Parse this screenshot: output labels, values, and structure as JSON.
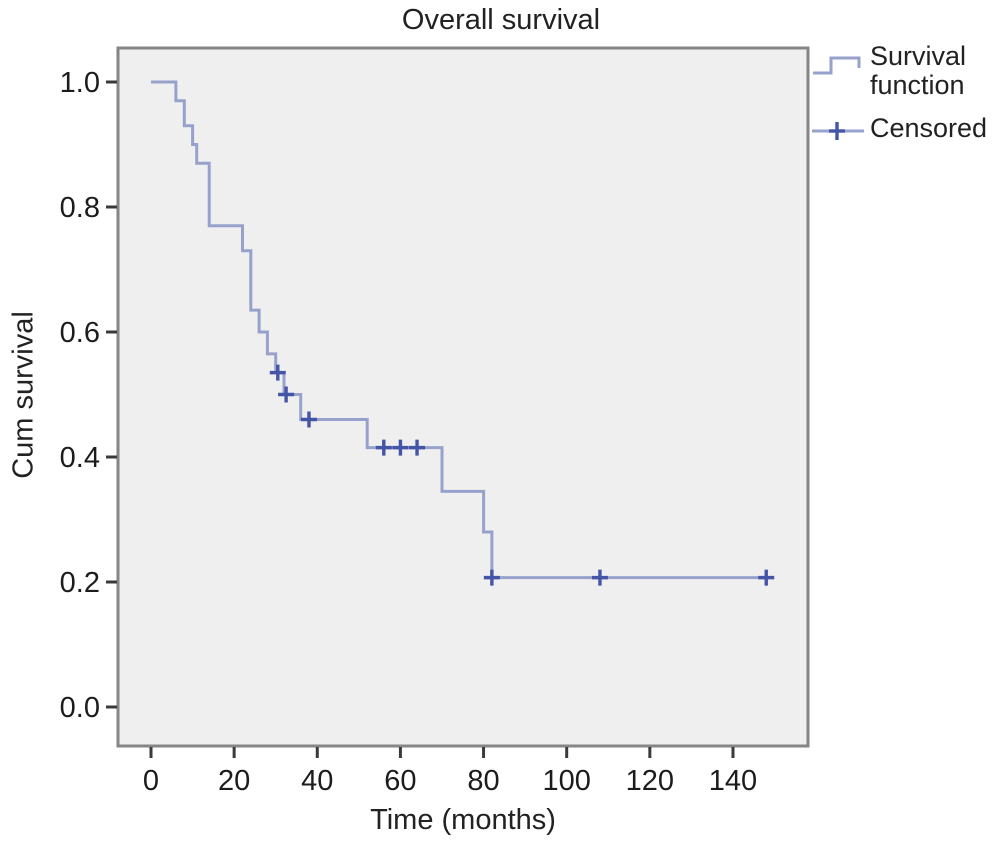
{
  "title": "Overall survival",
  "legend": {
    "items": [
      {
        "label": "Survival function",
        "symbol": "step-line"
      },
      {
        "label": "Censored",
        "symbol": "plus-marker"
      }
    ]
  },
  "colors": {
    "survival_line": "#97a2cc",
    "censored_marker": "#4454a6",
    "plot_background": "#efefef",
    "plot_border": "#868686",
    "tick": "#3a3a3a",
    "text": "#1c1c1c"
  },
  "chart_data": {
    "type": "line",
    "subtype": "kaplan-meier-step",
    "title": "Overall survival",
    "xlabel": "Time (months)",
    "ylabel": "Cum survival",
    "xlim": [
      -8,
      158
    ],
    "ylim": [
      -0.06,
      1.05
    ],
    "grid": false,
    "legend_position": "top-right-outside",
    "x_ticks": [
      {
        "value": 0,
        "label": "0"
      },
      {
        "value": 20,
        "label": "20"
      },
      {
        "value": 40,
        "label": "40"
      },
      {
        "value": 60,
        "label": "60"
      },
      {
        "value": 80,
        "label": "80"
      },
      {
        "value": 100,
        "label": "100"
      },
      {
        "value": 120,
        "label": "120"
      },
      {
        "value": 140,
        "label": "140"
      }
    ],
    "y_ticks": [
      {
        "value": 0.0,
        "label": "0.0"
      },
      {
        "value": 0.2,
        "label": "0.2"
      },
      {
        "value": 0.4,
        "label": "0.4"
      },
      {
        "value": 0.6,
        "label": "0.6"
      },
      {
        "value": 0.8,
        "label": "0.8"
      },
      {
        "value": 1.0,
        "label": "1.0"
      }
    ],
    "series": [
      {
        "name": "Survival function",
        "step_vertices": [
          [
            0,
            1.0
          ],
          [
            6,
            1.0
          ],
          [
            6,
            0.97
          ],
          [
            8,
            0.97
          ],
          [
            8,
            0.93
          ],
          [
            10,
            0.93
          ],
          [
            10,
            0.9
          ],
          [
            11,
            0.9
          ],
          [
            11,
            0.87
          ],
          [
            14,
            0.87
          ],
          [
            14,
            0.77
          ],
          [
            22,
            0.77
          ],
          [
            22,
            0.73
          ],
          [
            24,
            0.73
          ],
          [
            24,
            0.635
          ],
          [
            26,
            0.635
          ],
          [
            26,
            0.6
          ],
          [
            28,
            0.6
          ],
          [
            28,
            0.565
          ],
          [
            30,
            0.565
          ],
          [
            30,
            0.535
          ],
          [
            32,
            0.535
          ],
          [
            32,
            0.5
          ],
          [
            36,
            0.5
          ],
          [
            36,
            0.46
          ],
          [
            52,
            0.46
          ],
          [
            52,
            0.415
          ],
          [
            70,
            0.415
          ],
          [
            70,
            0.345
          ],
          [
            80,
            0.345
          ],
          [
            80,
            0.28
          ],
          [
            82,
            0.28
          ],
          [
            82,
            0.207
          ],
          [
            149,
            0.207
          ]
        ]
      }
    ],
    "censored_points": [
      [
        30.5,
        0.535
      ],
      [
        32.5,
        0.5
      ],
      [
        38,
        0.46
      ],
      [
        56,
        0.415
      ],
      [
        60,
        0.415
      ],
      [
        64,
        0.415
      ],
      [
        82,
        0.207
      ],
      [
        108,
        0.207
      ],
      [
        148,
        0.207
      ]
    ]
  }
}
